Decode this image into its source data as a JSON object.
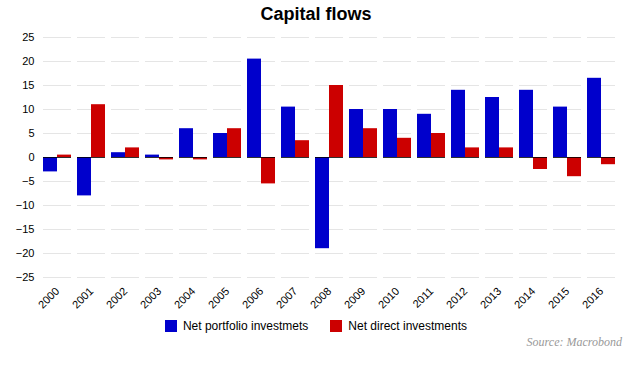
{
  "chart_data": {
    "type": "bar",
    "title": "Capital flows",
    "categories": [
      "2000",
      "2001",
      "2002",
      "2003",
      "2004",
      "2005",
      "2006",
      "2007",
      "2008",
      "2009",
      "2010",
      "2011",
      "2012",
      "2013",
      "2014",
      "2015",
      "2016"
    ],
    "series": [
      {
        "name": "Net portfolio investmets",
        "color": "#0000CC",
        "values": [
          -3,
          -8,
          1,
          0.5,
          6,
          5,
          20.5,
          10.5,
          -19,
          10,
          10,
          9,
          14,
          12.5,
          14,
          10.5,
          16.5
        ]
      },
      {
        "name": "Net direct investments",
        "color": "#CC0000",
        "values": [
          0.5,
          11,
          2,
          -0.5,
          -0.5,
          6,
          -5.5,
          3.5,
          15,
          6,
          4,
          5,
          2,
          2,
          -2.5,
          -4,
          -1.5
        ]
      }
    ],
    "ylim": [
      -25,
      25
    ],
    "yticks": [
      -25,
      -20,
      -15,
      -10,
      -5,
      0,
      5,
      10,
      15,
      20,
      25
    ],
    "grid": true,
    "legend": "bottom",
    "caption": "Source: Macrobond"
  }
}
